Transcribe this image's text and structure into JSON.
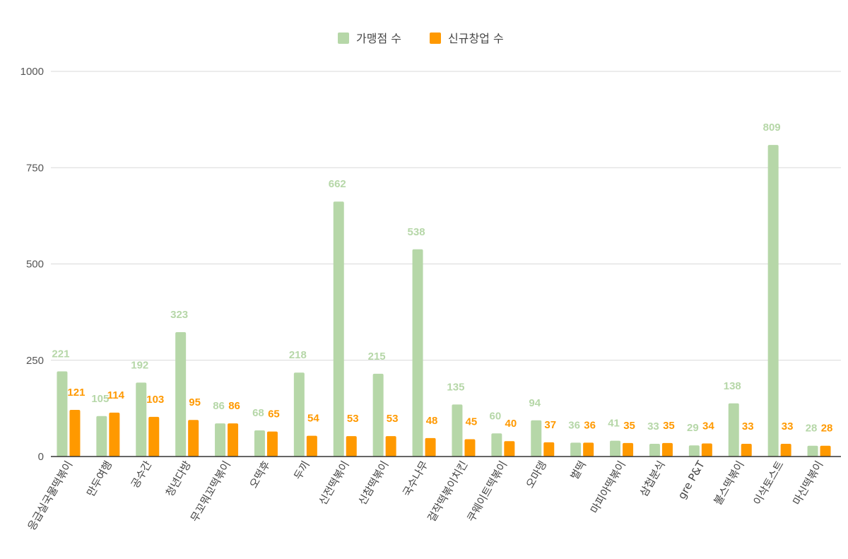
{
  "chart_data": {
    "type": "bar",
    "categories": [
      "응급실국물떡볶이",
      "만두여행",
      "공수간",
      "청년다방",
      "무꼬뭐꼬떡볶이",
      "오떡후",
      "두끼",
      "신전떡볶이",
      "신참떡볶이",
      "국수나무",
      "걸작떡볶이치킨",
      "쿠웨이트떡볶이",
      "오마뎅",
      "벌떡",
      "마피아떡볶이",
      "삼첩분식",
      "gre P&T",
      "불스떡볶이",
      "이삭토스트",
      "마신떡볶이"
    ],
    "series": [
      {
        "name": "가맹점 수",
        "color": "#b6d7a8",
        "label_color": "#b6d7a8",
        "values": [
          221,
          105,
          192,
          323,
          86,
          68,
          218,
          662,
          215,
          538,
          135,
          60,
          94,
          36,
          41,
          33,
          29,
          138,
          809,
          28
        ]
      },
      {
        "name": "신규창업 수",
        "color": "#ff9900",
        "label_color": "#ff9900",
        "values": [
          121,
          114,
          103,
          95,
          86,
          65,
          54,
          53,
          53,
          48,
          45,
          40,
          37,
          36,
          35,
          35,
          34,
          33,
          33,
          28
        ]
      }
    ],
    "y_ticks": [
      0,
      250,
      500,
      750,
      1000
    ],
    "ylim": [
      0,
      1000
    ],
    "grid": true,
    "legend_position": "top-center",
    "x_label_rotation": "-60deg"
  }
}
